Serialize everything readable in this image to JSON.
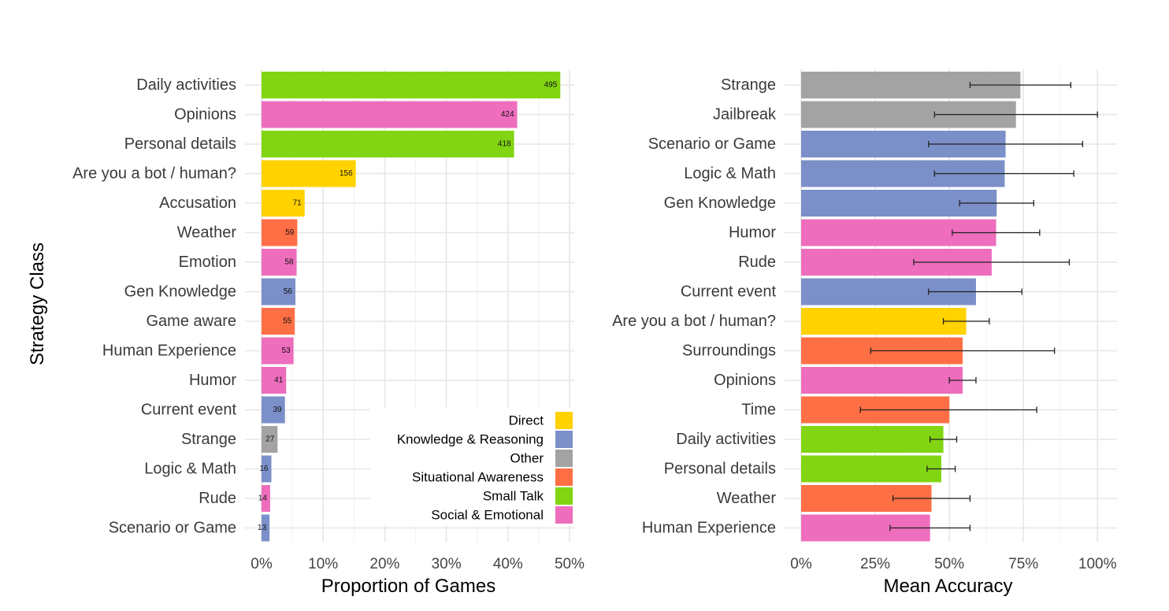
{
  "chart_data": [
    {
      "type": "bar",
      "orientation": "horizontal",
      "ylabel": "Strategy Class",
      "xlabel": "Proportion of Games",
      "xlim": [
        0,
        0.5
      ],
      "xticks": [
        0,
        0.1,
        0.2,
        0.3,
        0.4,
        0.5
      ],
      "xtick_labels": [
        "0%",
        "10%",
        "20%",
        "30%",
        "40%",
        "50%"
      ],
      "categories": [
        "Daily activities",
        "Opinions",
        "Personal details",
        "Are you a bot / human?",
        "Accusation",
        "Weather",
        "Emotion",
        "Gen Knowledge",
        "Game aware",
        "Human Experience",
        "Humor",
        "Current event",
        "Strange",
        "Logic & Math",
        "Rude",
        "Scenario or Game"
      ],
      "values": [
        0.485,
        0.415,
        0.41,
        0.153,
        0.07,
        0.058,
        0.057,
        0.055,
        0.054,
        0.052,
        0.04,
        0.038,
        0.026,
        0.016,
        0.014,
        0.013
      ],
      "counts": [
        "495",
        "424",
        "418",
        "156",
        "71",
        "59",
        "58",
        "56",
        "55",
        "53",
        "41",
        "39",
        "27",
        "16",
        "14",
        "13"
      ],
      "groups": [
        "Small Talk",
        "Social & Emotional",
        "Small Talk",
        "Direct",
        "Direct",
        "Situational Awareness",
        "Social & Emotional",
        "Knowledge & Reasoning",
        "Situational Awareness",
        "Social & Emotional",
        "Social & Emotional",
        "Knowledge & Reasoning",
        "Other",
        "Knowledge & Reasoning",
        "Social & Emotional",
        "Knowledge & Reasoning"
      ],
      "legend": {
        "placement": "bottom-right",
        "entries": [
          {
            "name": "Direct",
            "color": "#FFD200"
          },
          {
            "name": "Knowledge & Reasoning",
            "color": "#7B8FC8"
          },
          {
            "name": "Other",
            "color": "#A3A3A3"
          },
          {
            "name": "Situational Awareness",
            "color": "#FF6F45"
          },
          {
            "name": "Small Talk",
            "color": "#82D512"
          },
          {
            "name": "Social & Emotional",
            "color": "#EE6DBC"
          }
        ]
      },
      "grid": true
    },
    {
      "type": "bar",
      "orientation": "horizontal",
      "xlabel": "Mean Accuracy",
      "xlim": [
        0,
        1.05
      ],
      "xticks": [
        0,
        0.25,
        0.5,
        0.75,
        1.0
      ],
      "xtick_labels": [
        "0%",
        "25%",
        "50%",
        "75%",
        "100%"
      ],
      "categories": [
        "Strange",
        "Jailbreak",
        "Scenario or Game",
        "Logic & Math",
        "Gen Knowledge",
        "Humor",
        "Rude",
        "Current event",
        "Are you a bot / human?",
        "Surroundings",
        "Opinions",
        "Time",
        "Daily activities",
        "Personal details",
        "Weather",
        "Human Experience"
      ],
      "values": [
        0.74,
        0.725,
        0.69,
        0.687,
        0.66,
        0.658,
        0.643,
        0.59,
        0.557,
        0.545,
        0.545,
        0.5,
        0.48,
        0.473,
        0.44,
        0.435
      ],
      "error_low": [
        0.57,
        0.45,
        0.43,
        0.45,
        0.535,
        0.51,
        0.38,
        0.43,
        0.48,
        0.235,
        0.5,
        0.2,
        0.435,
        0.425,
        0.31,
        0.3
      ],
      "error_high": [
        0.91,
        1.0,
        0.95,
        0.92,
        0.785,
        0.805,
        0.905,
        0.745,
        0.635,
        0.855,
        0.59,
        0.795,
        0.525,
        0.52,
        0.57,
        0.57
      ],
      "groups": [
        "Other",
        "Other",
        "Knowledge & Reasoning",
        "Knowledge & Reasoning",
        "Knowledge & Reasoning",
        "Social & Emotional",
        "Social & Emotional",
        "Knowledge & Reasoning",
        "Direct",
        "Situational Awareness",
        "Social & Emotional",
        "Situational Awareness",
        "Small Talk",
        "Small Talk",
        "Situational Awareness",
        "Social & Emotional"
      ],
      "grid": true
    }
  ]
}
